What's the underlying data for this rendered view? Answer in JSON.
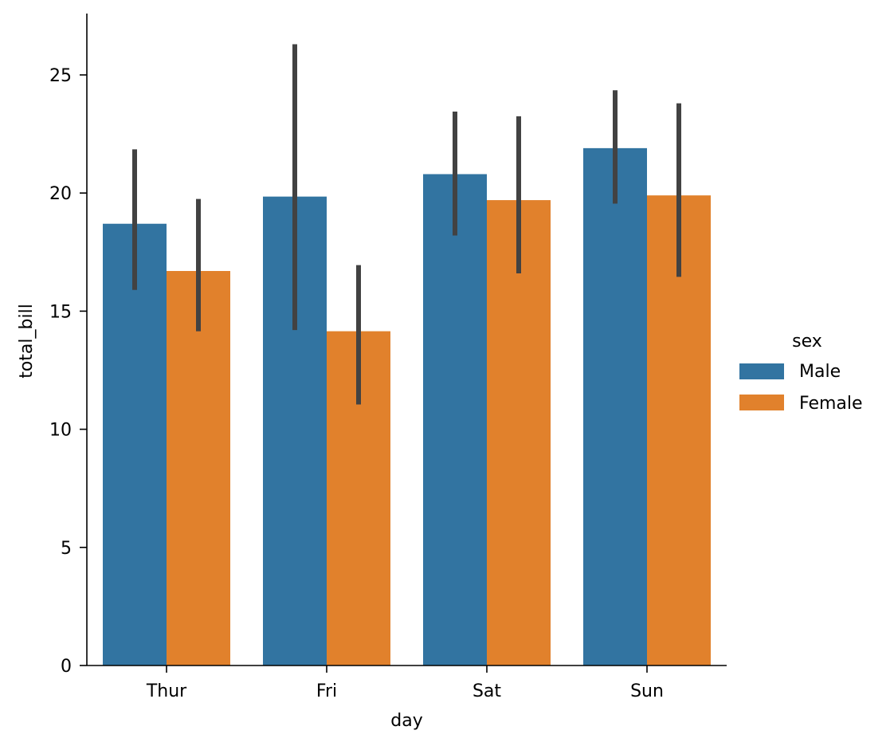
{
  "chart_data": {
    "type": "bar",
    "title": "",
    "xlabel": "day",
    "ylabel": "total_bill",
    "categories": [
      "Thur",
      "Fri",
      "Sat",
      "Sun"
    ],
    "ylim": [
      0,
      27.5
    ],
    "yticks": [
      0,
      5,
      10,
      15,
      20,
      25
    ],
    "grid": false,
    "legend": {
      "title": "sex",
      "placement": "right"
    },
    "series": [
      {
        "name": "Male",
        "color": "#3274a1",
        "values": [
          18.7,
          19.85,
          20.8,
          21.9
        ],
        "ci": [
          [
            15.9,
            21.85
          ],
          [
            14.2,
            26.3
          ],
          [
            18.2,
            23.45
          ],
          [
            19.55,
            24.35
          ]
        ]
      },
      {
        "name": "Female",
        "color": "#e1812c",
        "values": [
          16.7,
          14.15,
          19.7,
          19.9
        ],
        "ci": [
          [
            14.15,
            19.75
          ],
          [
            11.05,
            16.95
          ],
          [
            16.6,
            23.25
          ],
          [
            16.45,
            23.8
          ]
        ]
      }
    ],
    "errorbar_color": "#424242"
  }
}
